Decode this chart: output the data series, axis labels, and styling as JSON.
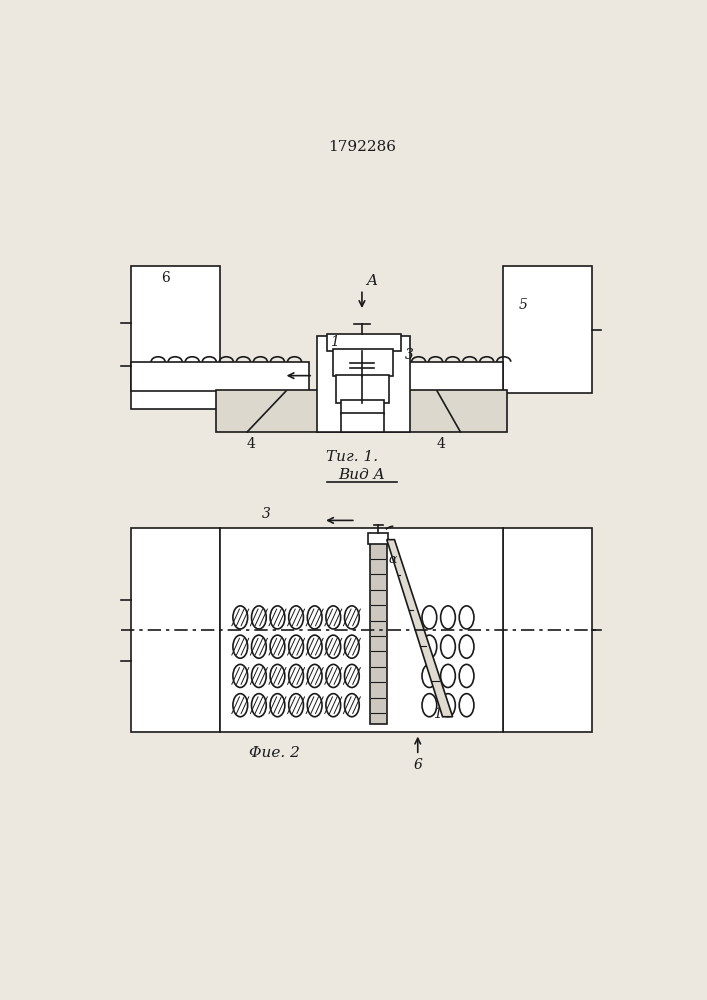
{
  "title": "1792286",
  "fig1_caption": "Τиг. 1.",
  "fig2_caption": "Φие. 2",
  "view_label": "Вид A",
  "bg_color": "#ede8df",
  "line_color": "#1a1a1a"
}
